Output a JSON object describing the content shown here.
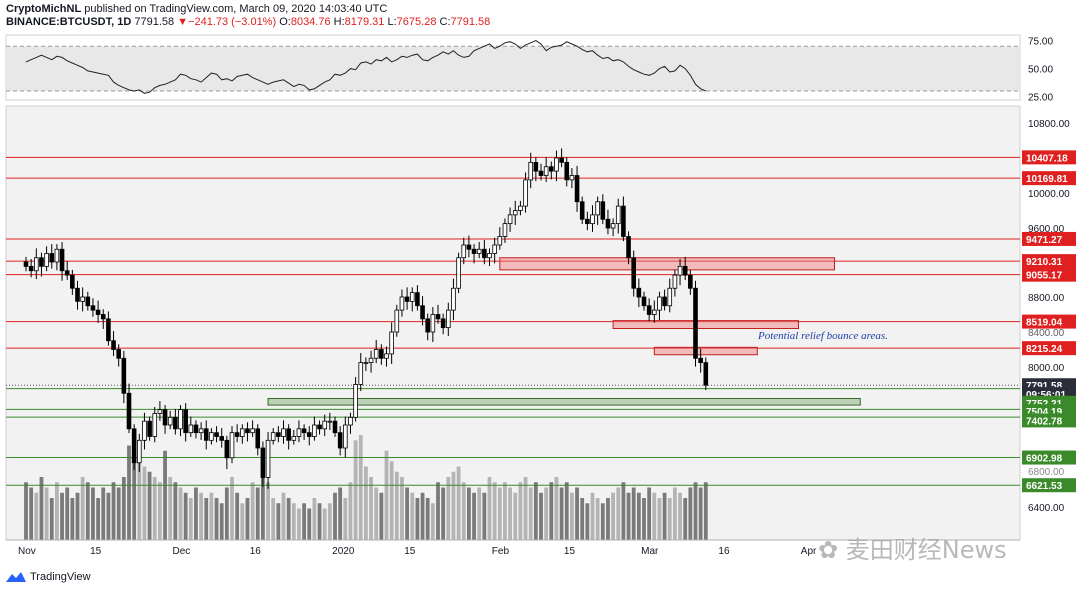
{
  "header": {
    "author": "CryptoMichNL",
    "published": " published on TradingView.com, March 09, 2020 14:03:40 UTC",
    "symbol": "BINANCE:BTCUSDT, 1D",
    "last": "7791.58",
    "change_arrow": "▼",
    "change": "−241.73 (−3.01%)",
    "o_label": "O:",
    "o": "8034.76",
    "h_label": "H:",
    "h": "8179.31",
    "l_label": "L:",
    "l": "7675.28",
    "c_label": "C:",
    "c": "7791.58"
  },
  "footer": {
    "brand": "TradingView"
  },
  "watermark": {
    "text": "麦田财经News"
  },
  "annotation": {
    "text": "Potential relief bounce areas."
  },
  "colors": {
    "up": "#ffffff",
    "down": "#000000",
    "wick": "#000000",
    "resistance": "#e02020",
    "support": "#3a8a2a",
    "zone_red": "rgba(240,120,120,0.45)",
    "zone_green": "rgba(120,170,110,0.45)",
    "vol_up": "#b4b4b4",
    "vol_down": "#7a7a7a",
    "rsi": "#222222",
    "annotation": "#1f3fa8",
    "label_red": "#e02020",
    "label_green": "#3a8a2a",
    "label_dark": "#2a2e39"
  },
  "chart_data": [
    {
      "type": "line",
      "name": "rsi",
      "y_ticks": [
        "75.00",
        "50.00",
        "25.00"
      ],
      "ylim": [
        22,
        80
      ],
      "x_start_day": 0,
      "values": [
        56,
        58,
        60,
        62,
        60,
        58,
        61,
        60,
        57,
        55,
        53,
        51,
        48,
        47,
        46,
        45,
        44,
        38,
        35,
        33,
        31,
        30,
        31,
        28,
        29,
        33,
        35,
        36,
        38,
        40,
        45,
        44,
        41,
        40,
        38,
        42,
        46,
        45,
        40,
        41,
        39,
        43,
        44,
        45,
        42,
        40,
        38,
        36,
        38,
        39,
        40,
        37,
        34,
        36,
        35,
        31,
        32,
        35,
        38,
        40,
        45,
        44,
        46,
        50,
        49,
        55,
        56,
        54,
        58,
        57,
        60,
        56,
        58,
        61,
        60,
        62,
        63,
        58,
        57,
        60,
        62,
        65,
        63,
        66,
        62,
        60,
        61,
        66,
        68,
        70,
        72,
        68,
        70,
        73,
        74,
        72,
        68,
        71,
        73,
        75,
        72,
        66,
        69,
        70,
        71,
        74,
        72,
        70,
        67,
        65,
        66,
        62,
        59,
        60,
        57,
        58,
        56,
        52,
        49,
        47,
        45,
        44,
        46,
        50,
        52,
        47,
        48,
        53,
        50,
        44,
        36,
        32,
        30
      ]
    },
    {
      "type": "candlestick",
      "title": "BINANCE:BTCUSDT, 1D",
      "y_ticks": [
        "10800.00",
        "10000.00",
        "9600.00",
        "9200.00",
        "8800.00",
        "8400.00",
        "8000.00",
        "6400.00"
      ],
      "overlay_ticks": [
        "8400.00",
        "6800.00"
      ],
      "x_ticks": [
        {
          "label": "Nov",
          "day": 0
        },
        {
          "label": "15",
          "day": 14
        },
        {
          "label": "Dec",
          "day": 30
        },
        {
          "label": "16",
          "day": 45
        },
        {
          "label": "2020",
          "day": 61
        },
        {
          "label": "15",
          "day": 75
        },
        {
          "label": "Feb",
          "day": 92
        },
        {
          "label": "15",
          "day": 106
        },
        {
          "label": "Mar",
          "day": 121
        },
        {
          "label": "16",
          "day": 136
        },
        {
          "label": "Apr",
          "day": 152
        }
      ],
      "open_start": 9200,
      "closes": [
        9150,
        9100,
        9250,
        9150,
        9300,
        9200,
        9350,
        9100,
        9050,
        8900,
        8750,
        8800,
        8700,
        8650,
        8600,
        8550,
        8300,
        8200,
        8100,
        7700,
        7250,
        6850,
        7100,
        7350,
        7150,
        7450,
        7500,
        7300,
        7400,
        7250,
        7500,
        7200,
        7300,
        7200,
        7250,
        7100,
        7200,
        7150,
        7100,
        6900,
        7200,
        7150,
        7250,
        7200,
        7250,
        7000,
        6700,
        7100,
        7200,
        7150,
        7250,
        7100,
        7150,
        7250,
        7200,
        7150,
        7300,
        7250,
        7350,
        7350,
        7200,
        7000,
        7300,
        7400,
        7800,
        8050,
        8050,
        8100,
        8200,
        8100,
        8150,
        8400,
        8650,
        8800,
        8750,
        8850,
        8700,
        8550,
        8400,
        8600,
        8550,
        8450,
        8650,
        8900,
        9250,
        9400,
        9350,
        9300,
        9350,
        9250,
        9300,
        9400,
        9500,
        9650,
        9750,
        9800,
        9850,
        10150,
        10350,
        10250,
        10200,
        10300,
        10250,
        10400,
        10350,
        10150,
        10200,
        9900,
        9700,
        9650,
        9750,
        9900,
        9700,
        9600,
        9650,
        9850,
        9500,
        9250,
        8900,
        8800,
        8700,
        8600,
        8650,
        8800,
        8700,
        8900,
        9050,
        9150,
        9050,
        8900,
        8100,
        8050,
        7791.58
      ],
      "levels_resistance": [
        10407.18,
        10169.81,
        9471.27,
        9210.31,
        9055.17,
        8519.04,
        8215.24
      ],
      "levels_support": [
        7752.21,
        7504.19,
        7402.78,
        6902.98,
        6621.53
      ],
      "price_labels": [
        {
          "value": "10407.18",
          "kind": "red",
          "price": 10407.18
        },
        {
          "value": "10169.81",
          "kind": "red",
          "price": 10169.81
        },
        {
          "value": "9471.27",
          "kind": "red",
          "price": 9471.27
        },
        {
          "value": "9210.31",
          "kind": "red",
          "price": 9210.31
        },
        {
          "value": "9055.17",
          "kind": "red",
          "price": 9055.17
        },
        {
          "value": "8519.04",
          "kind": "red",
          "price": 8519.04
        },
        {
          "value": "8215.24",
          "kind": "red",
          "price": 8215.24
        },
        {
          "value": "7791.58",
          "kind": "dark",
          "price": 7791.58
        },
        {
          "value": "09:56:01",
          "kind": "dark",
          "price": 7690
        },
        {
          "value": "7752.21",
          "kind": "green",
          "price": 7590
        },
        {
          "value": "7504.19",
          "kind": "green",
          "price": 7480
        },
        {
          "value": "7402.78",
          "kind": "green",
          "price": 7360
        },
        {
          "value": "6902.98",
          "kind": "green",
          "price": 6902.98
        },
        {
          "value": "6621.53",
          "kind": "green",
          "price": 6621.53
        }
      ],
      "zones": [
        {
          "from_day": 92,
          "to_day": 157,
          "top": 9250,
          "bottom": 9110,
          "kind": "red"
        },
        {
          "from_day": 114,
          "to_day": 150,
          "top": 8530,
          "bottom": 8440,
          "kind": "red"
        },
        {
          "from_day": 122,
          "to_day": 142,
          "top": 8225,
          "bottom": 8140,
          "kind": "red"
        },
        {
          "from_day": 47,
          "to_day": 162,
          "top": 7640,
          "bottom": 7560,
          "kind": "green"
        }
      ],
      "volume_levels": [
        0.55,
        0.5,
        0.45,
        0.6,
        0.5,
        0.4,
        0.55,
        0.45,
        0.5,
        0.4,
        0.45,
        0.6,
        0.55,
        0.5,
        0.4,
        0.5,
        0.45,
        0.55,
        0.5,
        0.6,
        0.9,
        1.0,
        0.75,
        0.7,
        0.65,
        0.6,
        0.55,
        0.85,
        0.6,
        0.55,
        0.5,
        0.45,
        0.4,
        0.5,
        0.45,
        0.4,
        0.45,
        0.4,
        0.35,
        0.5,
        0.6,
        0.45,
        0.35,
        0.4,
        0.55,
        0.5,
        0.75,
        0.55,
        0.4,
        0.35,
        0.45,
        0.4,
        0.35,
        0.3,
        0.35,
        0.3,
        0.4,
        0.35,
        0.3,
        0.35,
        0.45,
        0.5,
        0.4,
        0.55,
        0.95,
        1.0,
        0.7,
        0.6,
        0.5,
        0.45,
        0.85,
        0.75,
        0.65,
        0.6,
        0.5,
        0.45,
        0.4,
        0.45,
        0.4,
        0.35,
        0.55,
        0.5,
        0.6,
        0.65,
        0.7,
        0.55,
        0.5,
        0.45,
        0.5,
        0.45,
        0.6,
        0.55,
        0.5,
        0.55,
        0.5,
        0.45,
        0.55,
        0.6,
        0.5,
        0.55,
        0.45,
        0.5,
        0.55,
        0.6,
        0.5,
        0.55,
        0.45,
        0.5,
        0.4,
        0.35,
        0.45,
        0.4,
        0.35,
        0.4,
        0.45,
        0.5,
        0.55,
        0.45,
        0.5,
        0.45,
        0.4,
        0.5,
        0.45,
        0.4,
        0.45,
        0.4,
        0.5,
        0.45,
        0.4,
        0.5,
        0.55,
        0.5,
        0.55
      ]
    }
  ]
}
